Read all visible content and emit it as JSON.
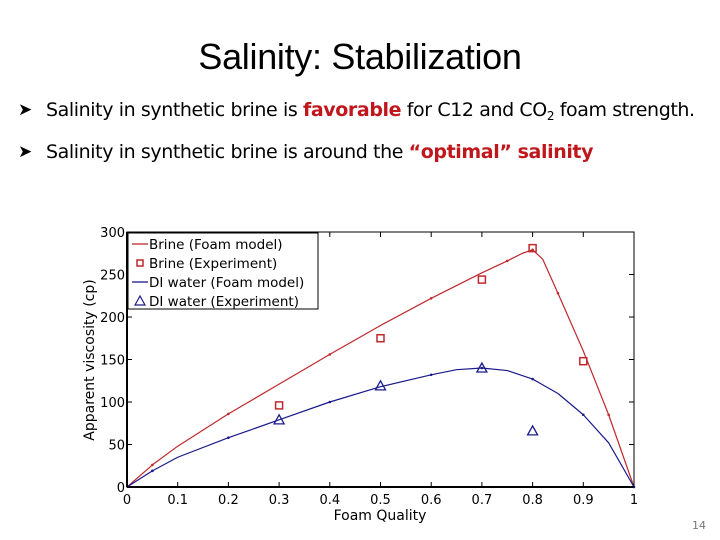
{
  "slide": {
    "title": "Salinity: Stabilization",
    "page_number": "14",
    "bullet_icon": "arrow-bullet-icon",
    "bullets": [
      {
        "prefix": "Salinity in synthetic brine is ",
        "highlight": "favorable",
        "middle": " for C12 and CO",
        "subscript": "2",
        "suffix": " foam strength."
      },
      {
        "prefix": "Salinity in synthetic brine is around the ",
        "highlight": "“optimal” salinity",
        "suffix": ""
      }
    ],
    "colors": {
      "highlight": "#c0171d",
      "brine": "#c0282d",
      "di_water": "#1a1a8c"
    }
  },
  "chart_data": {
    "type": "line",
    "title": "",
    "xlabel": "Foam Quality",
    "ylabel": "Apparent viscosity (cp)",
    "xlim": [
      0,
      1
    ],
    "ylim": [
      0,
      300
    ],
    "xticks": [
      "0",
      "0.1",
      "0.2",
      "0.3",
      "0.4",
      "0.5",
      "0.6",
      "0.7",
      "0.8",
      "0.9",
      "1"
    ],
    "yticks": [
      "0",
      "50",
      "100",
      "150",
      "200",
      "250",
      "300"
    ],
    "grid": false,
    "legend_position": "upper left",
    "series": [
      {
        "name": "Brine (Foam model)",
        "style": "line",
        "color": "#c0282d",
        "x": [
          0,
          0.05,
          0.1,
          0.2,
          0.3,
          0.4,
          0.5,
          0.6,
          0.7,
          0.75,
          0.78,
          0.8,
          0.82,
          0.85,
          0.9,
          0.95,
          1.0
        ],
        "y": [
          0,
          26,
          48,
          86,
          121,
          156,
          190,
          222,
          252,
          266,
          275,
          279,
          268,
          228,
          160,
          85,
          0
        ]
      },
      {
        "name": "Brine (Experiment)",
        "style": "square-marker",
        "color": "#c0282d",
        "x": [
          0.3,
          0.5,
          0.7,
          0.8,
          0.9
        ],
        "y": [
          96,
          175,
          244,
          281,
          148
        ]
      },
      {
        "name": "DI water (Foam model)",
        "style": "line",
        "color": "#1a1a8c",
        "x": [
          0,
          0.05,
          0.1,
          0.2,
          0.3,
          0.4,
          0.5,
          0.6,
          0.65,
          0.7,
          0.75,
          0.8,
          0.85,
          0.9,
          0.95,
          1.0
        ],
        "y": [
          0,
          19,
          35,
          58,
          79,
          100,
          118,
          132,
          138,
          140,
          137,
          127,
          110,
          85,
          52,
          0
        ]
      },
      {
        "name": "DI water (Experiment)",
        "style": "triangle-marker",
        "color": "#1a1a8c",
        "x": [
          0.3,
          0.5,
          0.7,
          0.8
        ],
        "y": [
          79,
          119,
          140,
          66
        ]
      }
    ]
  }
}
